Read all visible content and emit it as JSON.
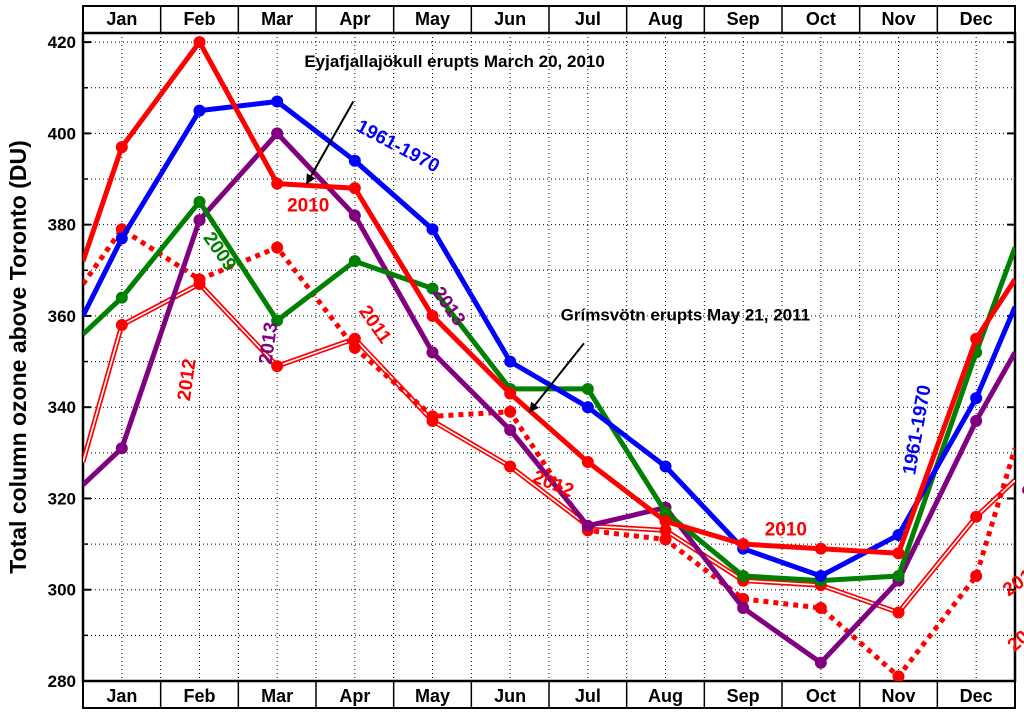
{
  "chart_data": {
    "type": "line",
    "ylabel": "Total column ozone above Toronto (DU)",
    "categories": [
      "Jan",
      "Feb",
      "Mar",
      "Apr",
      "May",
      "Jun",
      "Jul",
      "Aug",
      "Sep",
      "Oct",
      "Nov",
      "Dec"
    ],
    "ylim": [
      280,
      422
    ],
    "yticks": [
      280,
      300,
      320,
      340,
      360,
      380,
      400,
      420
    ],
    "grid": true,
    "series": [
      {
        "name": "1961-1970",
        "color": "#0000ff",
        "style": "solid",
        "edge": [
          360,
          362
        ],
        "values": [
          377,
          405,
          407,
          394,
          379,
          350,
          340,
          327,
          309,
          303,
          312,
          342
        ]
      },
      {
        "name": "2009",
        "color": "#008000",
        "style": "solid",
        "edge": [
          356,
          375
        ],
        "values": [
          364,
          385,
          359,
          372,
          366,
          344,
          344,
          317,
          303,
          302,
          303,
          352
        ]
      },
      {
        "name": "2010",
        "color": "#ff0000",
        "style": "solid",
        "edge": [
          372,
          368
        ],
        "values": [
          397,
          420,
          389,
          388,
          360,
          343,
          328,
          315,
          310,
          309,
          308,
          355
        ]
      },
      {
        "name": "2011",
        "color": "#ff0000",
        "style": "dotted",
        "edge": [
          367,
          331
        ],
        "values": [
          379,
          368,
          375,
          353,
          338,
          339,
          313,
          311,
          298,
          296,
          281,
          303
        ]
      },
      {
        "name": "2012",
        "color": "#ff0000",
        "style": "double",
        "edge": [
          328,
          324
        ],
        "values": [
          358,
          367,
          349,
          355,
          337,
          327,
          314,
          313,
          302,
          301,
          295,
          316
        ]
      },
      {
        "name": "2013",
        "color": "#800080",
        "style": "solid",
        "edge": [
          323,
          352
        ],
        "values": [
          331,
          381,
          400,
          382,
          352,
          335,
          314,
          318,
          296,
          284,
          302,
          337
        ]
      }
    ],
    "series_labels": [
      {
        "text": "1961-1970",
        "color": "#0000ff",
        "at": [
          3.55,
          397
        ],
        "rotate": 28
      },
      {
        "text": "2010",
        "color": "#ff0000",
        "at": [
          2.4,
          384
        ],
        "rotate": 0
      },
      {
        "text": "2009",
        "color": "#008000",
        "at": [
          1.25,
          374
        ],
        "rotate": 55
      },
      {
        "text": "2011",
        "color": "#ff0000",
        "at": [
          3.25,
          358
        ],
        "rotate": 55
      },
      {
        "text": "2013",
        "color": "#800080",
        "at": [
          4.2,
          362
        ],
        "rotate": 55
      },
      {
        "text": "2013",
        "color": "#800080",
        "at": [
          1.9,
          354
        ],
        "rotate": -82
      },
      {
        "text": "2012",
        "color": "#ff0000",
        "at": [
          0.85,
          346
        ],
        "rotate": -82
      },
      {
        "text": "2012",
        "color": "#ff0000",
        "at": [
          5.55,
          323
        ],
        "rotate": 22
      },
      {
        "text": "2010",
        "color": "#ff0000",
        "at": [
          8.55,
          313
        ],
        "rotate": 0
      },
      {
        "text": "1961-1970",
        "color": "#0000ff",
        "at": [
          10.25,
          335
        ],
        "rotate": -80
      },
      {
        "text": "2009",
        "color": "#008000",
        "at": [
          11.85,
          363
        ],
        "rotate": -75
      },
      {
        "text": "2013",
        "color": "#800080",
        "at": [
          11.75,
          325
        ],
        "rotate": -75
      },
      {
        "text": "2012",
        "color": "#ff0000",
        "at": [
          11.6,
          302
        ],
        "rotate": -35
      },
      {
        "text": "2011",
        "color": "#ff0000",
        "at": [
          11.65,
          290
        ],
        "rotate": -40
      }
    ],
    "annotations": [
      {
        "text": "Eyjafjallajökull erupts March 20, 2010",
        "at": [
          2.35,
          414.5
        ],
        "arrow_from": [
          2.98,
          407
        ],
        "arrow_to": [
          2.38,
          389
        ]
      },
      {
        "text": "Grímsvötn erupts May 21, 2011",
        "at": [
          5.65,
          359
        ],
        "arrow_from": [
          5.95,
          354
        ],
        "arrow_to": [
          5.25,
          339
        ]
      }
    ]
  }
}
